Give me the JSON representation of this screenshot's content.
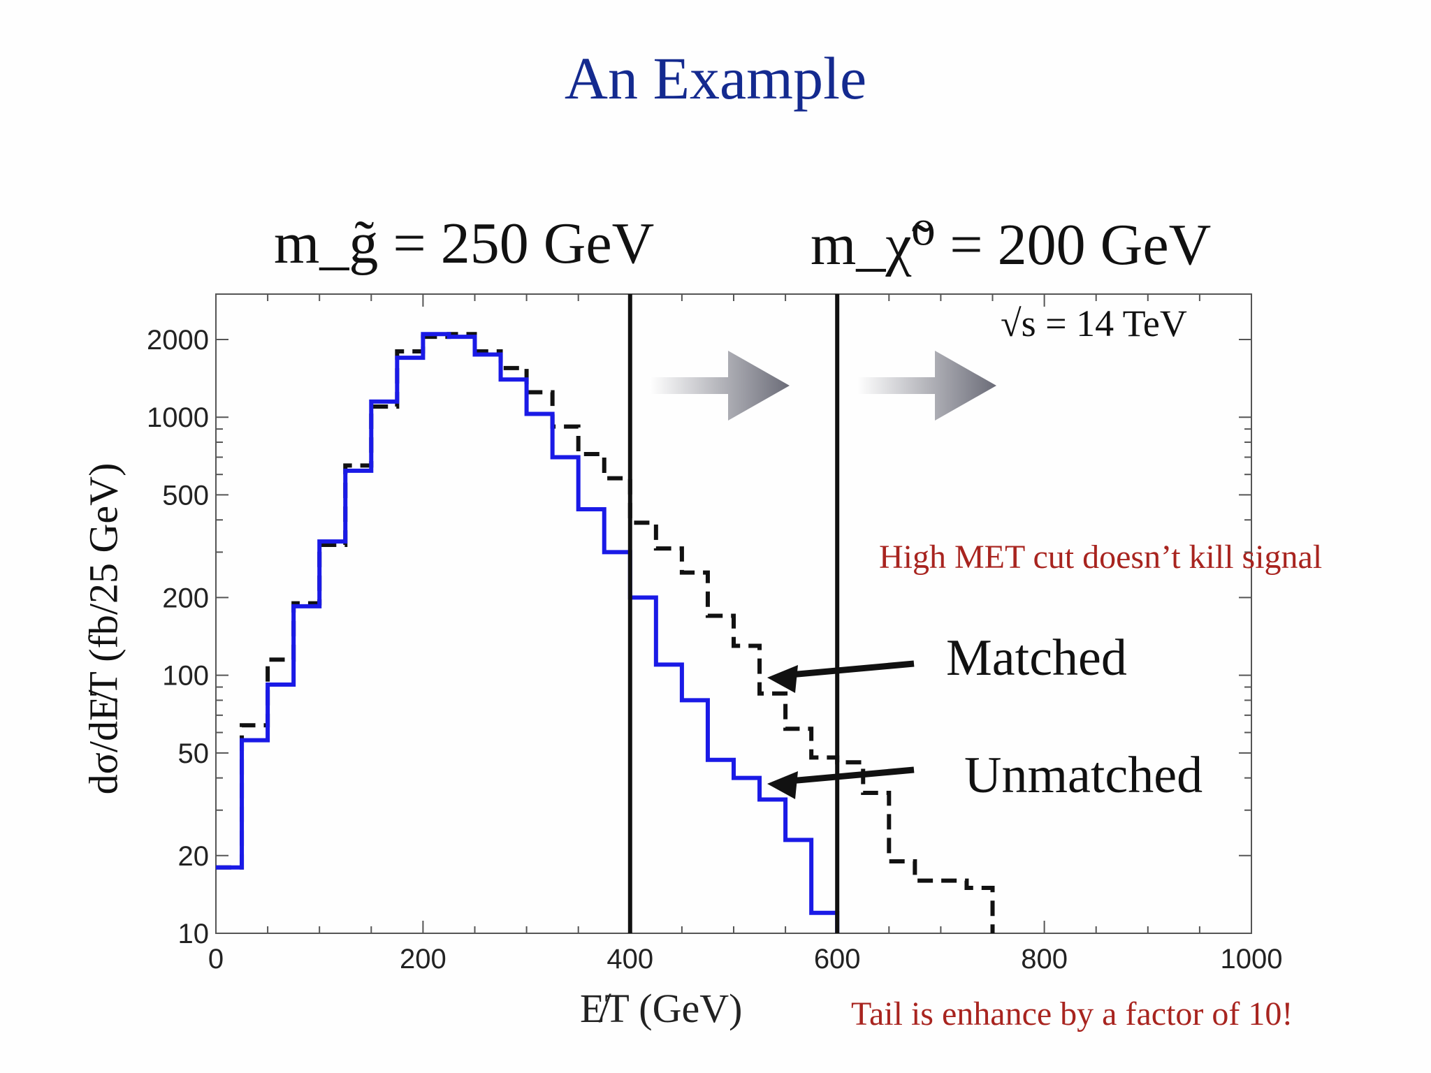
{
  "slide": {
    "title": "An Example",
    "mass_gluino": "m_g̃ = 250 GeV",
    "mass_neutralino": "m_χ̃⁰ = 200 GeV",
    "energy": "√s = 14 TeV",
    "note_met_cut": "High MET cut doesn’t kill signal",
    "note_tail": "Tail is enhance by a factor of 10!",
    "label_matched": "Matched",
    "label_unmatched": "Unmatched",
    "xlabel": "E̸T (GeV)",
    "ylabel": "dσ/dE̸T (fb/25 GeV)"
  },
  "colors": {
    "title": "#142a8f",
    "note": "#a8241f",
    "unmatched": "#1a1ae6",
    "matched": "#111111"
  },
  "chart_data": {
    "type": "line",
    "title": "",
    "xlabel": "E̸T (GeV)",
    "ylabel": "dσ/dE̸T (fb/25 GeV)",
    "xlim": [
      0,
      1000
    ],
    "ylim": [
      10,
      3000
    ],
    "y_scale": "log",
    "x_ticks": [
      0,
      200,
      400,
      600,
      800,
      1000
    ],
    "y_ticks": [
      10,
      20,
      50,
      100,
      200,
      500,
      1000,
      2000
    ],
    "bin_edges": [
      0,
      25,
      50,
      75,
      100,
      125,
      150,
      175,
      200,
      225,
      250,
      275,
      300,
      325,
      350,
      375,
      400,
      425,
      450,
      475,
      500,
      525,
      550,
      575,
      600,
      625,
      650,
      675,
      700,
      725,
      750,
      775
    ],
    "series": [
      {
        "name": "Unmatched",
        "style": "solid",
        "values": [
          18,
          56,
          92,
          185,
          330,
          620,
          1150,
          1700,
          2100,
          2050,
          1750,
          1400,
          1030,
          700,
          440,
          300,
          200,
          110,
          80,
          47,
          40,
          33,
          23,
          12
        ]
      },
      {
        "name": "Matched",
        "style": "dashed",
        "values": [
          18,
          64,
          115,
          190,
          320,
          650,
          1100,
          1800,
          2050,
          2100,
          1800,
          1550,
          1250,
          920,
          720,
          580,
          390,
          310,
          250,
          170,
          130,
          85,
          62,
          48,
          46,
          35,
          19,
          16,
          16,
          15
        ]
      }
    ],
    "vertical_lines": [
      400,
      600
    ],
    "grid": false
  }
}
